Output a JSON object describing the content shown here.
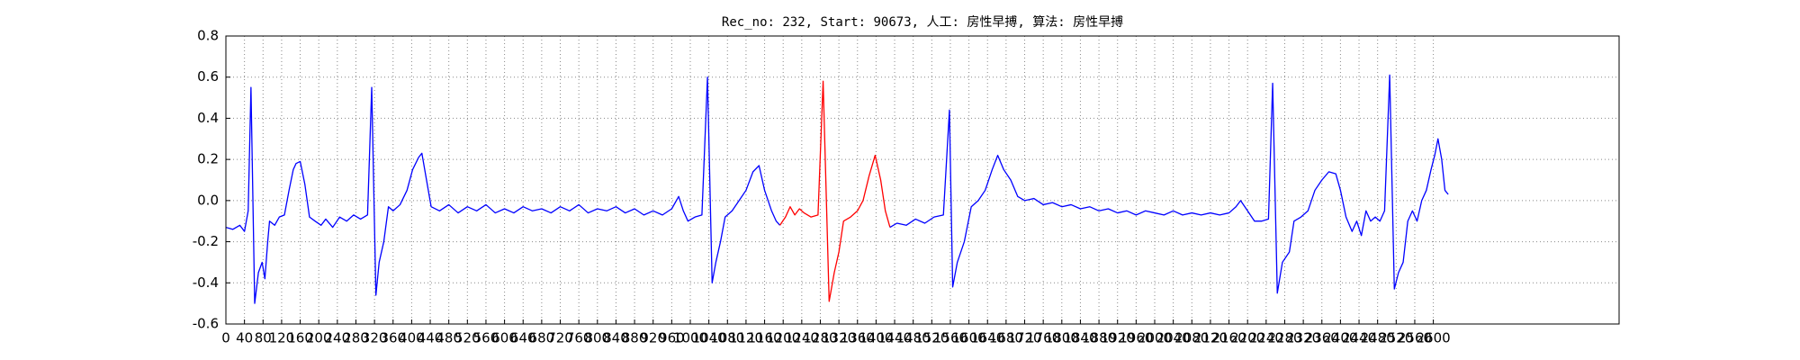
{
  "chart_data": {
    "type": "line",
    "title": "Rec_no: 232, Start: 90673, 人工: 房性早搏, 算法: 房性早搏",
    "xlim": [
      0,
      3000
    ],
    "xticks": [
      0,
      40,
      80,
      120,
      160,
      200,
      240,
      280,
      320,
      360,
      400,
      440,
      480,
      520,
      560,
      600,
      640,
      680,
      720,
      760,
      800,
      840,
      880,
      920,
      960,
      1000,
      1040,
      1080,
      1120,
      1160,
      1200,
      1240,
      1280,
      1320,
      1360,
      1400,
      1440,
      1480,
      1520,
      1560,
      1600,
      1640,
      1680,
      1720,
      1760,
      1800,
      1840,
      1880,
      1920,
      1960,
      2000,
      2040,
      2080,
      2120,
      2160,
      2200,
      2240,
      2280,
      2320,
      2360,
      2400,
      2440,
      2480,
      2520,
      2560,
      2600
    ],
    "ylim": [
      -0.6,
      0.8
    ],
    "yticks": [
      -0.6,
      -0.4,
      -0.2,
      {
        "value": 0,
        "label": "0.0"
      },
      0.2,
      0.4,
      0.6,
      0.8
    ],
    "grid": true,
    "series": [
      {
        "color": "#0000ff",
        "x": [
          0,
          15,
          30,
          40,
          48,
          54,
          62,
          70,
          78,
          84,
          90,
          94,
          105,
          115,
          126,
          136,
          145,
          151,
          160,
          170,
          180,
          192,
          205,
          215,
          230,
          245,
          260,
          275,
          290,
          305,
          314,
          323,
          330,
          340,
          350,
          360,
          375,
          390,
          402,
          415,
          422,
          432,
          442,
          460,
          480,
          500,
          520,
          540,
          560,
          580,
          600,
          620,
          640,
          660,
          680,
          700,
          720,
          740,
          760,
          780,
          800,
          820,
          840,
          860,
          880,
          900,
          920,
          940,
          960,
          975,
          985,
          995,
          1010,
          1025,
          1037,
          1047,
          1055,
          1065,
          1075,
          1090,
          1105,
          1120,
          1135,
          1148,
          1160,
          1175,
          1185,
          1193
        ],
        "values": [
          -0.13,
          -0.14,
          -0.12,
          -0.15,
          -0.05,
          0.55,
          -0.5,
          -0.35,
          -0.3,
          -0.38,
          -0.2,
          -0.1,
          -0.12,
          -0.08,
          -0.07,
          0.05,
          0.15,
          0.18,
          0.19,
          0.08,
          -0.08,
          -0.1,
          -0.12,
          -0.09,
          -0.13,
          -0.08,
          -0.1,
          -0.07,
          -0.09,
          -0.07,
          0.55,
          -0.46,
          -0.3,
          -0.2,
          -0.03,
          -0.05,
          -0.02,
          0.05,
          0.15,
          0.21,
          0.23,
          0.1,
          -0.03,
          -0.05,
          -0.02,
          -0.06,
          -0.03,
          -0.05,
          -0.02,
          -0.06,
          -0.04,
          -0.06,
          -0.03,
          -0.05,
          -0.04,
          -0.06,
          -0.03,
          -0.05,
          -0.02,
          -0.06,
          -0.04,
          -0.05,
          -0.03,
          -0.06,
          -0.04,
          -0.07,
          -0.05,
          -0.07,
          -0.04,
          0.02,
          -0.05,
          -0.1,
          -0.08,
          -0.07,
          0.6,
          -0.4,
          -0.3,
          -0.2,
          -0.08,
          -0.05,
          0,
          0.05,
          0.14,
          0.17,
          0.05,
          -0.05,
          -0.1,
          -0.12
        ]
      },
      {
        "color": "#ff0000",
        "x": [
          1193,
          1205,
          1215,
          1225,
          1235,
          1245,
          1260,
          1275,
          1286,
          1299,
          1310,
          1320,
          1330,
          1345,
          1360,
          1372,
          1385,
          1398,
          1410,
          1420,
          1430
        ],
        "values": [
          -0.12,
          -0.08,
          -0.03,
          -0.07,
          -0.04,
          -0.06,
          -0.08,
          -0.07,
          0.58,
          -0.49,
          -0.35,
          -0.25,
          -0.1,
          -0.08,
          -0.05,
          0,
          0.12,
          0.22,
          0.1,
          -0.05,
          -0.13
        ]
      },
      {
        "color": "#0000ff",
        "x": [
          1430,
          1445,
          1465,
          1485,
          1505,
          1525,
          1545,
          1558,
          1565,
          1575,
          1590,
          1605,
          1620,
          1635,
          1650,
          1662,
          1675,
          1690,
          1705,
          1720,
          1740,
          1760,
          1780,
          1800,
          1820,
          1840,
          1860,
          1880,
          1900,
          1920,
          1940,
          1960,
          1980,
          2000,
          2020,
          2040,
          2060,
          2080,
          2100,
          2120,
          2140,
          2160,
          2175,
          2185,
          2200,
          2215,
          2230,
          2245,
          2254,
          2264,
          2275,
          2290,
          2300,
          2315,
          2330,
          2345,
          2360,
          2375,
          2390,
          2400,
          2412,
          2425,
          2435,
          2445,
          2455,
          2465,
          2475,
          2485,
          2495,
          2506,
          2516,
          2525,
          2535,
          2545,
          2555,
          2565,
          2575,
          2585,
          2595,
          2603,
          2610,
          2618,
          2625,
          2632
        ],
        "values": [
          -0.13,
          -0.11,
          -0.12,
          -0.09,
          -0.11,
          -0.08,
          -0.07,
          0.44,
          -0.42,
          -0.3,
          -0.2,
          -0.03,
          0,
          0.05,
          0.15,
          0.22,
          0.15,
          0.1,
          0.02,
          0,
          0.01,
          -0.02,
          -0.01,
          -0.03,
          -0.02,
          -0.04,
          -0.03,
          -0.05,
          -0.04,
          -0.06,
          -0.05,
          -0.07,
          -0.05,
          -0.06,
          -0.07,
          -0.05,
          -0.07,
          -0.06,
          -0.07,
          -0.06,
          -0.07,
          -0.06,
          -0.03,
          0,
          -0.05,
          -0.1,
          -0.1,
          -0.09,
          0.57,
          -0.45,
          -0.3,
          -0.25,
          -0.1,
          -0.08,
          -0.05,
          0.05,
          0.1,
          0.14,
          0.13,
          0.05,
          -0.08,
          -0.15,
          -0.1,
          -0.17,
          -0.05,
          -0.1,
          -0.08,
          -0.1,
          -0.05,
          0.61,
          -0.43,
          -0.35,
          -0.3,
          -0.1,
          -0.05,
          -0.1,
          0,
          0.05,
          0.15,
          0.22,
          0.3,
          0.2,
          0.05,
          0.03
        ]
      }
    ]
  }
}
